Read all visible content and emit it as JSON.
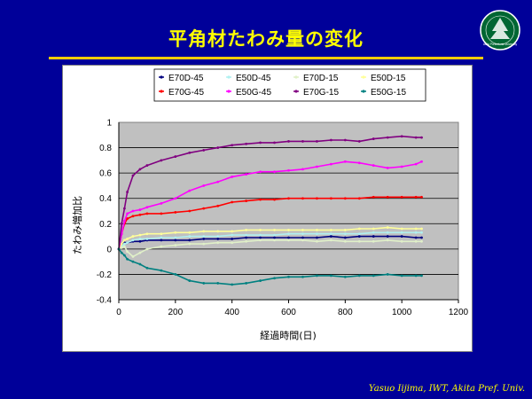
{
  "slide": {
    "title": "平角材たわみ量の変化",
    "footer": "Yasuo Iijima, IWT, Akita Pref.  Univ.",
    "title_color": "#ffff00",
    "background_color": "#000099",
    "logo_icon": "university-seal-icon",
    "logo_text": "Akita Prefectural University"
  },
  "chart_data": {
    "type": "line",
    "title": "",
    "xlabel": "経過時間(日)",
    "ylabel": "たわみ増加比",
    "xlim": [
      0,
      1200
    ],
    "ylim": [
      -0.4,
      1
    ],
    "xticks": [
      "0",
      "200",
      "400",
      "600",
      "800",
      "1000",
      "1200"
    ],
    "yticks": [
      "1",
      "0.8",
      "0.6",
      "0.4",
      "0.2",
      "0",
      "-0.2",
      "-0.4"
    ],
    "grid": true,
    "plot_background": "#c0c0c0",
    "legend_position": "top",
    "x": [
      0,
      10,
      20,
      30,
      50,
      75,
      100,
      150,
      200,
      250,
      300,
      350,
      400,
      450,
      500,
      550,
      600,
      650,
      700,
      750,
      800,
      850,
      900,
      950,
      1000,
      1050,
      1070
    ],
    "series": [
      {
        "name": "E70D-45",
        "color": "#000080",
        "values": [
          0,
          0.03,
          0.05,
          0.05,
          0.06,
          0.06,
          0.07,
          0.07,
          0.07,
          0.07,
          0.08,
          0.08,
          0.08,
          0.09,
          0.09,
          0.09,
          0.09,
          0.09,
          0.09,
          0.1,
          0.09,
          0.1,
          0.1,
          0.1,
          0.1,
          0.09,
          0.09
        ]
      },
      {
        "name": "E50D-45",
        "color": "#b0f0f0",
        "values": [
          0,
          0.02,
          0.04,
          0.05,
          0.07,
          0.08,
          0.08,
          0.09,
          0.09,
          0.1,
          0.1,
          0.1,
          0.11,
          0.11,
          0.11,
          0.11,
          0.12,
          0.12,
          0.12,
          0.12,
          0.12,
          0.12,
          0.13,
          0.13,
          0.13,
          0.13,
          0.13
        ]
      },
      {
        "name": "E70D-15",
        "color": "#e0f0c8",
        "values": [
          0,
          0.01,
          0.02,
          -0.02,
          -0.06,
          -0.03,
          0.0,
          0.02,
          0.03,
          0.04,
          0.04,
          0.05,
          0.05,
          0.06,
          0.07,
          0.07,
          0.07,
          0.07,
          0.06,
          0.07,
          0.06,
          0.06,
          0.06,
          0.07,
          0.06,
          0.06,
          0.06
        ]
      },
      {
        "name": "E50D-15",
        "color": "#ffff99",
        "values": [
          0,
          0.04,
          0.07,
          0.08,
          0.1,
          0.11,
          0.12,
          0.12,
          0.13,
          0.13,
          0.14,
          0.14,
          0.14,
          0.15,
          0.15,
          0.15,
          0.15,
          0.15,
          0.15,
          0.15,
          0.15,
          0.16,
          0.16,
          0.17,
          0.16,
          0.16,
          0.16
        ]
      },
      {
        "name": "E70G-45",
        "color": "#ff0000",
        "values": [
          0,
          0.12,
          0.2,
          0.24,
          0.26,
          0.27,
          0.28,
          0.28,
          0.29,
          0.3,
          0.32,
          0.34,
          0.37,
          0.38,
          0.39,
          0.39,
          0.4,
          0.4,
          0.4,
          0.4,
          0.4,
          0.4,
          0.41,
          0.41,
          0.41,
          0.41,
          0.41
        ]
      },
      {
        "name": "E50G-45",
        "color": "#ff00ff",
        "values": [
          0,
          0.12,
          0.22,
          0.28,
          0.3,
          0.31,
          0.33,
          0.36,
          0.4,
          0.46,
          0.5,
          0.53,
          0.57,
          0.59,
          0.61,
          0.61,
          0.62,
          0.63,
          0.65,
          0.67,
          0.69,
          0.68,
          0.66,
          0.64,
          0.65,
          0.67,
          0.69
        ]
      },
      {
        "name": "E70G-15",
        "color": "#800080",
        "values": [
          0,
          0.2,
          0.32,
          0.45,
          0.58,
          0.63,
          0.66,
          0.7,
          0.73,
          0.76,
          0.78,
          0.8,
          0.82,
          0.83,
          0.84,
          0.84,
          0.85,
          0.85,
          0.85,
          0.86,
          0.86,
          0.85,
          0.87,
          0.88,
          0.89,
          0.88,
          0.88
        ]
      },
      {
        "name": "E50G-15",
        "color": "#008080",
        "values": [
          0,
          -0.03,
          -0.05,
          -0.08,
          -0.1,
          -0.12,
          -0.15,
          -0.17,
          -0.2,
          -0.25,
          -0.27,
          -0.27,
          -0.28,
          -0.27,
          -0.25,
          -0.23,
          -0.22,
          -0.22,
          -0.21,
          -0.21,
          -0.22,
          -0.21,
          -0.21,
          -0.2,
          -0.21,
          -0.21,
          -0.21
        ]
      }
    ]
  }
}
